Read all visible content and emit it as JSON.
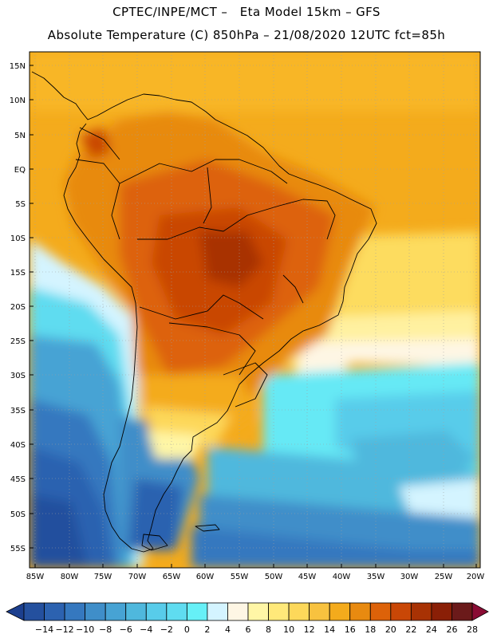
{
  "header": {
    "title_line1": "CPTEC/INPE/MCT –   Eta Model 15km – GFS",
    "title_line2": "Absolute Temperature (C) 850hPa – 21/08/2020 12UTC fct=85h"
  },
  "map": {
    "lon_labels": [
      "85W",
      "80W",
      "75W",
      "70W",
      "65W",
      "60W",
      "55W",
      "50W",
      "45W",
      "40W",
      "35W",
      "30W",
      "25W",
      "20W"
    ],
    "lat_labels": [
      "15N",
      "10N",
      "5N",
      "EQ",
      "5S",
      "10S",
      "15S",
      "20S",
      "25S",
      "30S",
      "35S",
      "40S",
      "45S",
      "50S",
      "55S"
    ],
    "field": "Absolute Temperature (C)",
    "level": "850hPa",
    "region": "South America"
  },
  "colorbar": {
    "labels": [
      "-14",
      "-12",
      "-10",
      "-8",
      "-6",
      "-4",
      "-2",
      "0",
      "2",
      "4",
      "6",
      "8",
      "10",
      "12",
      "14",
      "16",
      "18",
      "20",
      "22",
      "24",
      "26",
      "28"
    ],
    "colors": [
      "#1c3f8e",
      "#24509e",
      "#2c62b0",
      "#3578bf",
      "#3f8ec9",
      "#47a3d4",
      "#4fb8dd",
      "#58ccea",
      "#5fdcf0",
      "#66f0f7",
      "#d4f4ff",
      "#fef6e4",
      "#fff6a6",
      "#ffe97a",
      "#fdd85a",
      "#f8c23f",
      "#f4ab1c",
      "#e88a10",
      "#dd6209",
      "#c94706",
      "#a83204",
      "#8a1f06",
      "#6b1a1a",
      "#8a0c34"
    ]
  }
}
